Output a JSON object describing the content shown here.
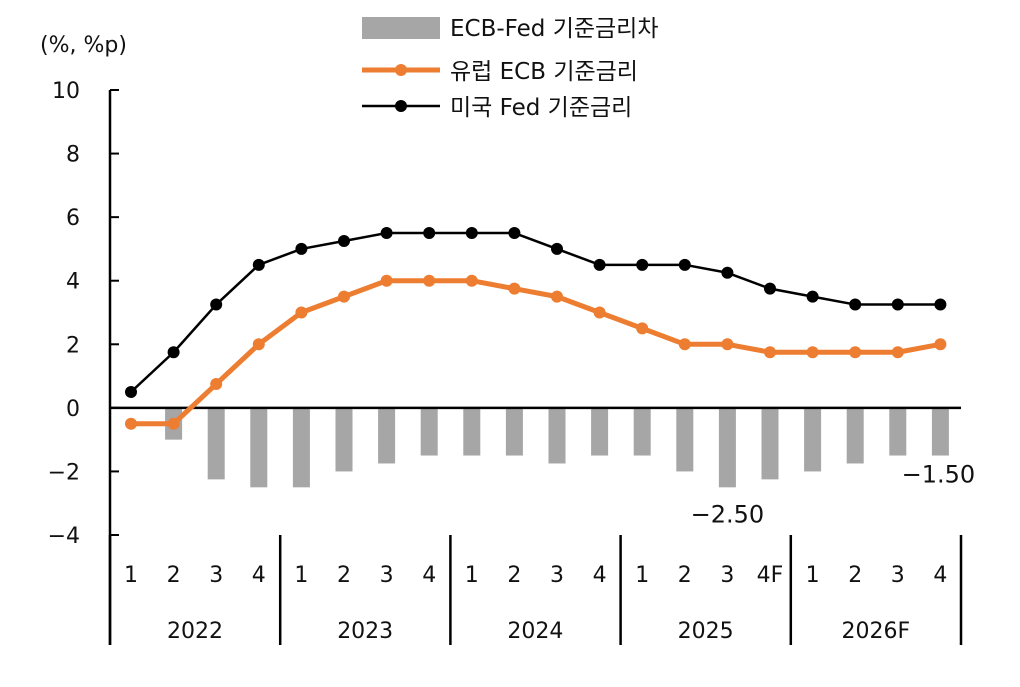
{
  "chart_data": {
    "type": "bar+line",
    "ylabel": "(%, %p)",
    "ylim": [
      -4,
      10
    ],
    "yticks": [
      10,
      8,
      6,
      4,
      2,
      0,
      -2,
      -4
    ],
    "categories": [
      "1",
      "2",
      "3",
      "4",
      "1",
      "2",
      "3",
      "4",
      "1",
      "2",
      "3",
      "4",
      "1",
      "2",
      "3",
      "4F",
      "1",
      "2",
      "3",
      "4"
    ],
    "groups": [
      "2022",
      "2023",
      "2024",
      "2025",
      "2026F"
    ],
    "legend_position": "top",
    "series": [
      {
        "name": "ECB-Fed 기준금리차",
        "type": "bar",
        "color": "#a6a6a6",
        "values": [
          0,
          -1.0,
          -2.25,
          -2.5,
          -2.5,
          -2.0,
          -1.75,
          -1.5,
          -1.5,
          -1.5,
          -1.75,
          -1.5,
          -1.5,
          -2.0,
          -2.5,
          -2.25,
          -2.0,
          -1.75,
          -1.5,
          -1.5
        ]
      },
      {
        "name": "유럽 ECB 기준금리",
        "type": "line",
        "color": "#ed7d31",
        "values": [
          -0.5,
          -0.5,
          0.75,
          2.0,
          3.0,
          3.5,
          4.0,
          4.0,
          4.0,
          3.75,
          3.5,
          3.0,
          2.5,
          2.0,
          2.0,
          1.75,
          1.75,
          1.75,
          1.75,
          2.0
        ]
      },
      {
        "name": "미국 Fed 기준금리",
        "type": "line",
        "color": "#000000",
        "values": [
          0.5,
          1.75,
          3.25,
          4.5,
          5.0,
          5.25,
          5.5,
          5.5,
          5.5,
          5.5,
          5.0,
          4.5,
          4.5,
          4.5,
          4.25,
          3.75,
          3.5,
          3.25,
          3.25,
          3.25
        ]
      }
    ],
    "annotations": [
      {
        "label": "-2.50",
        "index": 14
      },
      {
        "label": "-1.50",
        "index": 19
      }
    ]
  }
}
